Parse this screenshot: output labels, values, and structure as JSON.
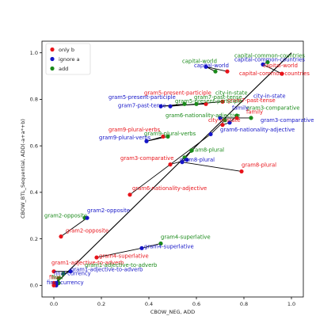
{
  "chart_data": {
    "type": "scatter",
    "title": "",
    "xlabel": "CBOW_NEG, ADD",
    "ylabel": "CBOW_BTL_Sequential, ADD(-a+a*+b)",
    "xlim": [
      -0.05,
      1.05
    ],
    "ylim": [
      -0.05,
      1.05
    ],
    "xticks": [
      "0.0",
      "0.2",
      "0.4",
      "0.6",
      "0.8",
      "1.0"
    ],
    "yticks": [
      "0.0",
      "0.2",
      "0.4",
      "0.6",
      "0.8",
      "1.0"
    ],
    "grid": false,
    "legend_position": "top-left",
    "legend": [
      {
        "key": "only_b",
        "label": "only b",
        "color": "#e8131a"
      },
      {
        "key": "ignore_a",
        "label": "ignore a",
        "color": "#1515c8"
      },
      {
        "key": "add",
        "label": "add",
        "color": "#1a8a1a"
      }
    ],
    "diagonal": [
      [
        0,
        0
      ],
      [
        1,
        1
      ]
    ],
    "relations": [
      {
        "name": "capital-common-countries",
        "only_b": [
          0.96,
          0.91
        ],
        "ignore_a": [
          0.88,
          0.95
        ],
        "add": [
          0.9,
          0.96
        ]
      },
      {
        "name": "capital-world",
        "only_b": [
          0.73,
          0.92
        ],
        "ignore_a": [
          0.64,
          0.94
        ],
        "add": [
          0.68,
          0.92
        ]
      },
      {
        "name": "city-in-state",
        "only_b": [
          0.71,
          0.69
        ],
        "ignore_a": [
          0.74,
          0.7
        ],
        "add": [
          0.77,
          0.73
        ]
      },
      {
        "name": "family",
        "only_b": [
          0.77,
          0.72
        ],
        "ignore_a": [
          0.7,
          0.72
        ],
        "add": [
          0.83,
          0.72
        ]
      },
      {
        "name": "gram1-adjective-to-adverb",
        "only_b": [
          0.0,
          0.06
        ],
        "ignore_a": [
          0.07,
          0.06
        ],
        "add": [
          0.04,
          0.05
        ]
      },
      {
        "name": "gram2-opposite",
        "only_b": [
          0.03,
          0.21
        ],
        "ignore_a": [
          0.14,
          0.29
        ],
        "add": [
          0.13,
          0.29
        ]
      },
      {
        "name": "gram3-comparative",
        "only_b": [
          0.49,
          0.52
        ],
        "ignore_a": [
          0.56,
          0.54
        ],
        "add": [
          0.55,
          0.55
        ]
      },
      {
        "name": "gram4-superlative",
        "only_b": [
          0.18,
          0.12
        ],
        "ignore_a": [
          0.37,
          0.16
        ],
        "add": [
          0.45,
          0.18
        ]
      },
      {
        "name": "gram5-present-participle",
        "only_b": [
          0.64,
          0.78
        ],
        "ignore_a": [
          0.45,
          0.77
        ],
        "add": [
          0.55,
          0.78
        ]
      },
      {
        "name": "gram6-nationality-adjective",
        "only_b": [
          0.32,
          0.39
        ],
        "ignore_a": [
          0.66,
          0.65
        ],
        "add": [
          0.72,
          0.71
        ]
      },
      {
        "name": "gram7-past-tense",
        "only_b": [
          0.71,
          0.79
        ],
        "ignore_a": [
          0.49,
          0.77
        ],
        "add": [
          0.6,
          0.78
        ]
      },
      {
        "name": "gram8-plural",
        "only_b": [
          0.79,
          0.49
        ],
        "ignore_a": [
          0.54,
          0.53
        ],
        "add": [
          0.58,
          0.58
        ]
      },
      {
        "name": "gram9-plural-verbs",
        "only_b": [
          0.46,
          0.64
        ],
        "ignore_a": [
          0.39,
          0.62
        ],
        "add": [
          0.48,
          0.64
        ]
      },
      {
        "name": "final",
        "only_b": [
          0.0,
          0.01
        ],
        "ignore_a": [
          0.01,
          0.0
        ],
        "add": [
          0.02,
          0.01
        ]
      },
      {
        "name": "final-currency",
        "only_b": [
          0.0,
          0.0
        ],
        "ignore_a": [
          0.01,
          0.01
        ],
        "add": [
          0.02,
          0.03
        ]
      }
    ],
    "labels": [
      {
        "text": "capital-common-countries",
        "series": "add",
        "x": 0.76,
        "y": 0.98
      },
      {
        "text": "capital-common-countries",
        "series": "ignore_a",
        "x": 0.76,
        "y": 0.963
      },
      {
        "text": "capital-world",
        "series": "add",
        "x": 0.54,
        "y": 0.957
      },
      {
        "text": "capital-world",
        "series": "ignore_a",
        "x": 0.59,
        "y": 0.937
      },
      {
        "text": "capital-world",
        "series": "only_b",
        "x": 0.88,
        "y": 0.937
      },
      {
        "text": "capital-common-countries",
        "series": "only_b",
        "x": 0.78,
        "y": 0.904
      },
      {
        "text": "gram5-present-participle",
        "series": "only_b",
        "x": 0.38,
        "y": 0.82
      },
      {
        "text": "city-in-state",
        "series": "add",
        "x": 0.68,
        "y": 0.82
      },
      {
        "text": "city-in-state",
        "series": "ignore_a",
        "x": 0.84,
        "y": 0.807
      },
      {
        "text": "gram5-present-participle",
        "series": "ignore_a",
        "x": 0.23,
        "y": 0.802
      },
      {
        "text": "gram7-past-tense",
        "series": "add",
        "x": 0.59,
        "y": 0.802
      },
      {
        "text": "gram7-past-tense",
        "series": "only_b",
        "x": 0.73,
        "y": 0.788
      },
      {
        "text": "gram7-past-tense",
        "series": "ignore_a",
        "x": 0.27,
        "y": 0.765
      },
      {
        "text": "gram5-present-participle",
        "series": "add",
        "x": 0.51,
        "y": 0.785
      },
      {
        "text": "gram3-comparative",
        "series": "add",
        "x": 0.81,
        "y": 0.755
      },
      {
        "text": "family",
        "series": "ignore_a",
        "x": 0.75,
        "y": 0.755
      },
      {
        "text": "family",
        "series": "only_b",
        "x": 0.81,
        "y": 0.738
      },
      {
        "text": "gram6-nationality-adjective",
        "series": "add",
        "x": 0.47,
        "y": 0.723
      },
      {
        "text": "city-in-state",
        "series": "only_b",
        "x": 0.65,
        "y": 0.702
      },
      {
        "text": "gram3-comparative",
        "series": "ignore_a",
        "x": 0.87,
        "y": 0.702
      },
      {
        "text": "gram9-plural-verbs",
        "series": "only_b",
        "x": 0.23,
        "y": 0.662
      },
      {
        "text": "gram6-nationality-adjective",
        "series": "ignore_a",
        "x": 0.7,
        "y": 0.662
      },
      {
        "text": "gram9-plural-verbs",
        "series": "add",
        "x": 0.38,
        "y": 0.645
      },
      {
        "text": "gram9-plural-verbs",
        "series": "ignore_a",
        "x": 0.19,
        "y": 0.628
      },
      {
        "text": "gram8-plural",
        "series": "add",
        "x": 0.57,
        "y": 0.575
      },
      {
        "text": "gram3-comparative",
        "series": "only_b",
        "x": 0.28,
        "y": 0.54
      },
      {
        "text": "gram8-plural",
        "series": "ignore_a",
        "x": 0.53,
        "y": 0.533
      },
      {
        "text": "gram8-plural",
        "series": "only_b",
        "x": 0.79,
        "y": 0.51
      },
      {
        "text": "gram6-nationality-adjective",
        "series": "only_b",
        "x": 0.33,
        "y": 0.41
      },
      {
        "text": "gram2-opposite",
        "series": "ignore_a",
        "x": 0.14,
        "y": 0.315
      },
      {
        "text": "gram2-opposite",
        "series": "add",
        "x": -0.04,
        "y": 0.292
      },
      {
        "text": "gram2-opposite",
        "series": "only_b",
        "x": 0.05,
        "y": 0.228
      },
      {
        "text": "gram4-superlative",
        "series": "add",
        "x": 0.45,
        "y": 0.2
      },
      {
        "text": "gram4-superlative",
        "series": "ignore_a",
        "x": 0.38,
        "y": 0.16
      },
      {
        "text": "gram4-superlative",
        "series": "only_b",
        "x": 0.19,
        "y": 0.118
      },
      {
        "text": "gram1-adjective-to-adverb",
        "series": "only_b",
        "x": -0.01,
        "y": 0.09
      },
      {
        "text": "gram1-adjective-to-adverb",
        "series": "add",
        "x": 0.13,
        "y": 0.08
      },
      {
        "text": "gram1-adjective-to-adverb",
        "series": "ignore_a",
        "x": 0.07,
        "y": 0.06
      },
      {
        "text": "final-currency",
        "series": "ignore_a",
        "x": 0.0,
        "y": 0.043
      },
      {
        "text": "final",
        "series": "only_b",
        "x": -0.02,
        "y": 0.026
      },
      {
        "text": "final",
        "series": "add",
        "x": -0.01,
        "y": 0.026
      },
      {
        "text": "final-currency",
        "series": "ignore_a",
        "x": -0.03,
        "y": 0.005
      }
    ]
  }
}
